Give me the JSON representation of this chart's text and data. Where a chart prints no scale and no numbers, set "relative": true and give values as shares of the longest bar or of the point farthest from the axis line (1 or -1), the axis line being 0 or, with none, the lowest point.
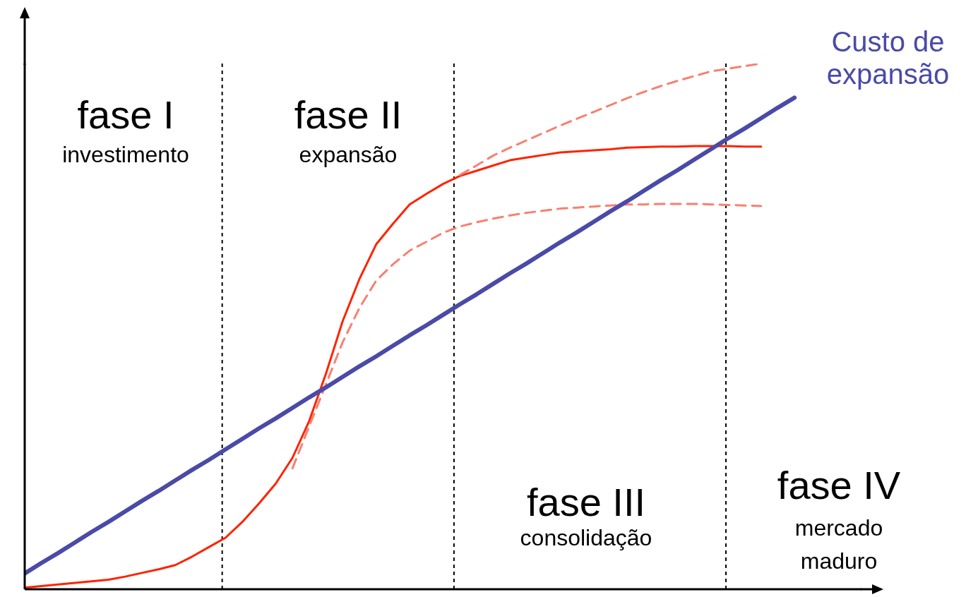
{
  "chart_data": {
    "type": "line",
    "relative": true,
    "grid": false,
    "legend": false,
    "categories": [
      null,
      null,
      null,
      null,
      null,
      null,
      null,
      null,
      null,
      null,
      null,
      null,
      null,
      null,
      null,
      null,
      null,
      null,
      null,
      null,
      null,
      null,
      null,
      null,
      null,
      null,
      null,
      null,
      null,
      null,
      null,
      null,
      null,
      null,
      null,
      null,
      null,
      null,
      null,
      null,
      null,
      null,
      null,
      null,
      null,
      null,
      null,
      null,
      null,
      null,
      null
    ],
    "series": [
      {
        "color": "#ff2200",
        "line_style": "solid",
        "values": [
          0.003,
          0.006,
          0.009,
          0.012,
          0.015,
          0.018,
          0.024,
          0.031,
          0.038,
          0.046,
          0.062,
          0.08,
          0.098,
          0.128,
          0.163,
          0.201,
          0.25,
          0.32,
          0.41,
          0.51,
          0.59,
          0.656,
          0.695,
          0.732,
          0.752,
          0.771,
          0.786,
          0.796,
          0.806,
          0.816,
          0.821,
          0.826,
          0.831,
          0.833,
          0.835,
          0.837,
          0.84,
          0.841,
          0.842,
          0.842,
          0.843,
          0.843,
          0.843,
          0.842,
          0.842,
          null,
          null,
          null,
          null,
          null,
          null
        ]
      },
      {
        "color": "#f88070",
        "line_style": "dashed",
        "values": [
          null,
          null,
          null,
          null,
          null,
          null,
          null,
          null,
          null,
          null,
          null,
          null,
          null,
          null,
          null,
          null,
          null,
          null,
          null,
          null,
          null,
          null,
          null,
          null,
          null,
          null,
          0.788,
          0.806,
          0.825,
          0.84,
          0.854,
          0.868,
          0.882,
          0.895,
          0.908,
          0.921,
          0.934,
          0.946,
          0.957,
          0.967,
          0.976,
          0.985,
          0.99,
          0.995,
          1.0,
          null,
          null,
          null,
          null,
          null,
          null
        ]
      },
      {
        "color": "#f88070",
        "line_style": "dashed",
        "values": [
          null,
          null,
          null,
          null,
          null,
          null,
          null,
          null,
          null,
          null,
          null,
          null,
          null,
          null,
          null,
          null,
          0.23,
          0.31,
          0.39,
          0.47,
          0.535,
          0.587,
          0.618,
          0.644,
          0.661,
          0.678,
          0.69,
          0.698,
          0.705,
          0.711,
          0.716,
          0.72,
          0.724,
          0.726,
          0.728,
          0.73,
          0.732,
          0.732,
          0.733,
          0.733,
          0.733,
          0.732,
          0.731,
          0.73,
          0.729,
          null,
          null,
          null,
          null,
          null,
          null
        ]
      },
      {
        "name": "Custo de expansão",
        "color": "#4a4aa8",
        "line_style": "solid",
        "values": [
          0.03,
          0.05,
          0.069,
          0.089,
          0.109,
          0.128,
          0.148,
          0.168,
          0.187,
          0.207,
          0.227,
          0.246,
          0.266,
          0.286,
          0.306,
          0.325,
          0.345,
          0.365,
          0.384,
          0.404,
          0.424,
          0.443,
          0.463,
          0.483,
          0.502,
          0.522,
          0.542,
          0.561,
          0.581,
          0.601,
          0.62,
          0.64,
          0.66,
          0.679,
          0.699,
          0.719,
          0.738,
          0.758,
          0.778,
          0.797,
          0.817,
          0.837,
          0.857,
          0.876,
          0.896,
          0.916,
          0.935,
          null,
          null,
          null,
          null
        ]
      }
    ],
    "annotations": [
      "fase I",
      "investimento",
      "fase II",
      "expansão",
      "fase III",
      "consolidação",
      "fase IV",
      "mercado",
      "maduro"
    ]
  }
}
